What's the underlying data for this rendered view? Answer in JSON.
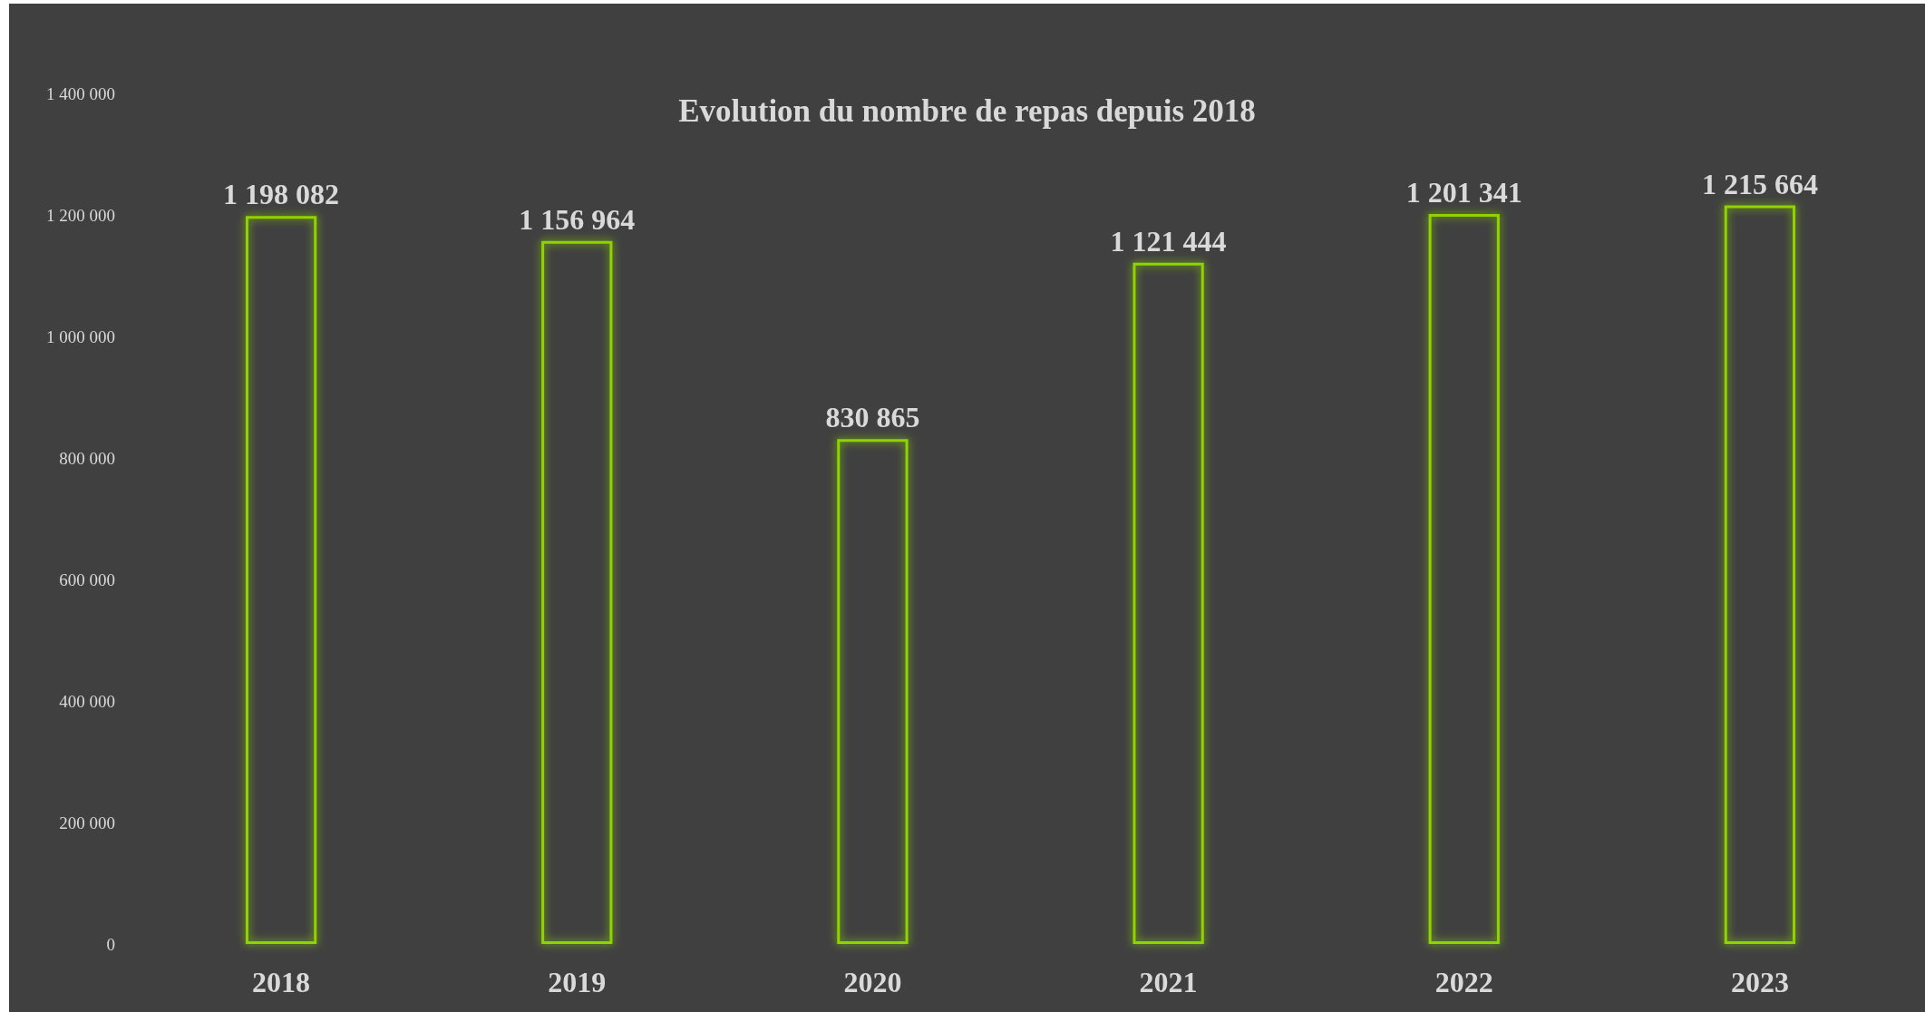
{
  "chart_data": {
    "type": "bar",
    "title": "Evolution du nombre de repas depuis 2018",
    "categories": [
      "2018",
      "2019",
      "2020",
      "2021",
      "2022",
      "2023"
    ],
    "values": [
      1198082,
      1156964,
      830865,
      1121444,
      1201341,
      1215664
    ],
    "value_labels": [
      "1 198 082",
      "1 156 964",
      "830 865",
      "1 121 444",
      "1 201 341",
      "1 215 664"
    ],
    "color": "#8fd400",
    "ylim": [
      0,
      1400000
    ],
    "yticks": [
      0,
      {
        "value": 200000,
        "label": "200 000"
      },
      {
        "value": 400000,
        "label": "400 000"
      },
      {
        "value": 600000,
        "label": "600 000"
      },
      {
        "value": 800000,
        "label": "800 000"
      },
      {
        "value": 1000000,
        "label": "1 000 000"
      },
      {
        "value": 1200000,
        "label": "1 200 000"
      },
      {
        "value": 1400000,
        "label": "1 400 000"
      }
    ],
    "grid": false
  }
}
